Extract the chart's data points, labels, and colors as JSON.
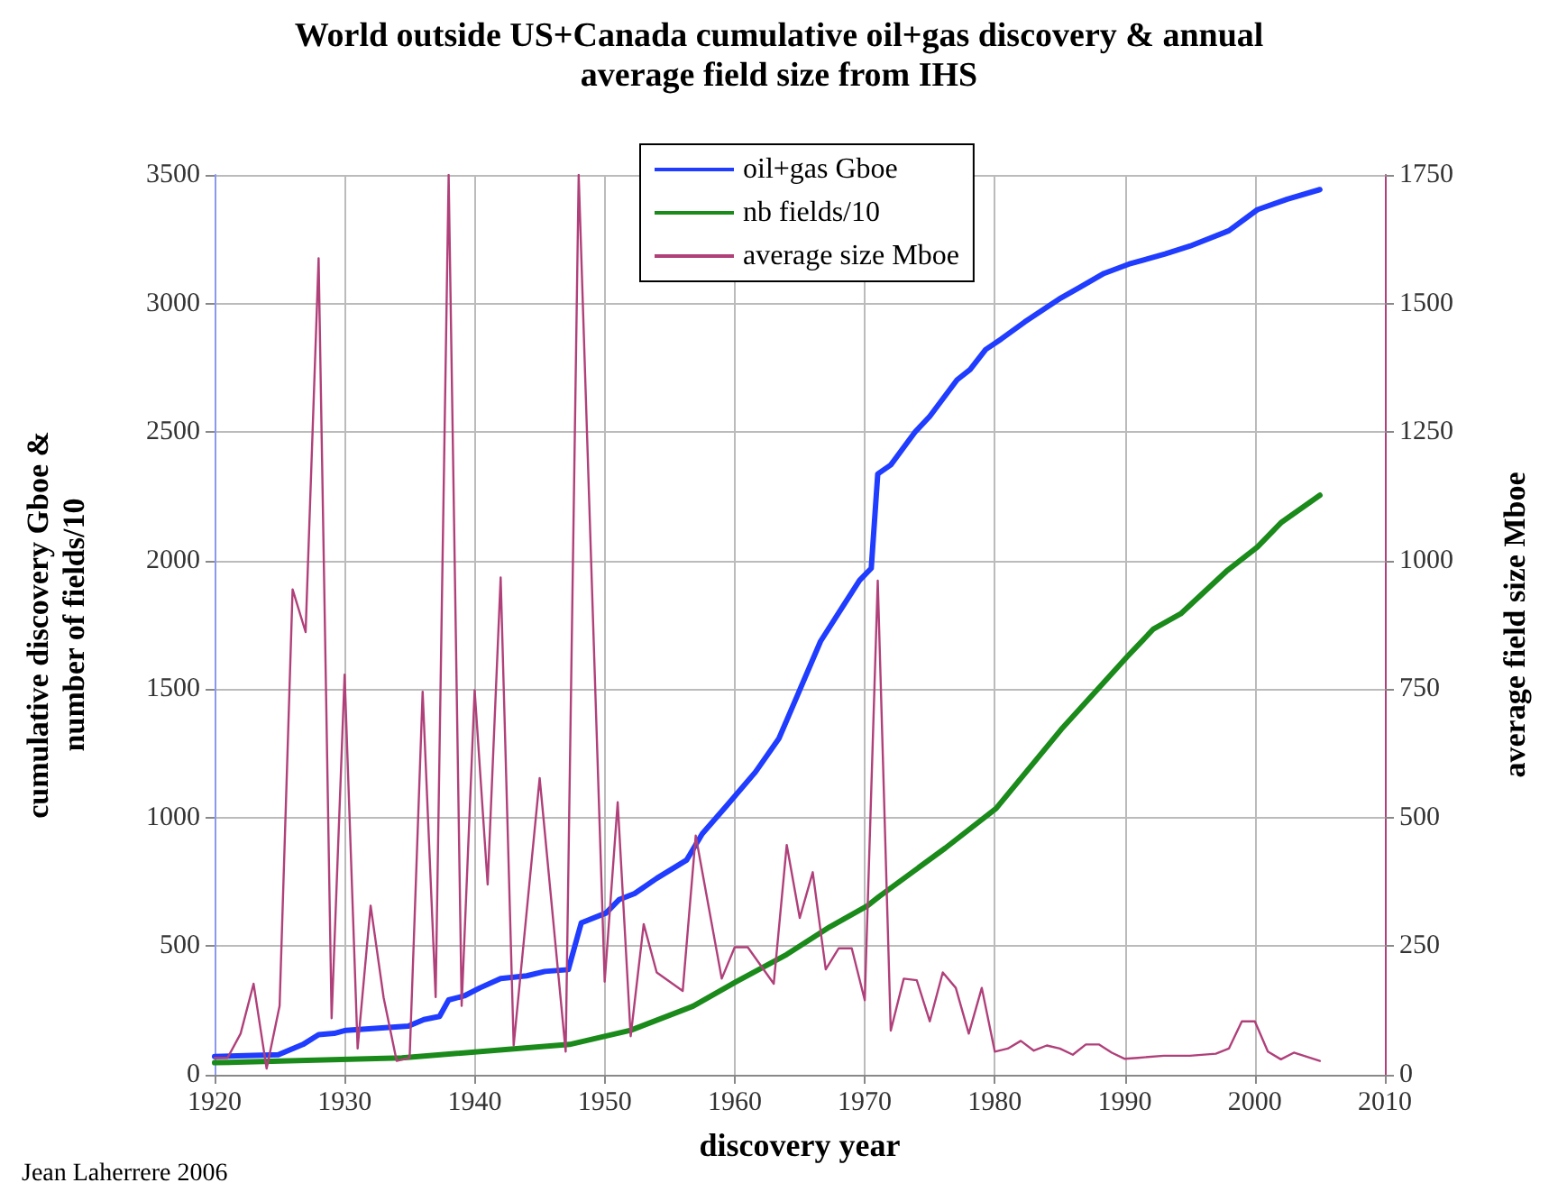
{
  "chart_data": {
    "type": "line",
    "title": "World outside US+Canada cumulative oil+gas discovery & annual average field size from IHS",
    "xlabel": "discovery year",
    "ylabel": "cumulative discovery Gboe & number of fields/10",
    "y2label": "average field size Mboe",
    "annotations": [
      "Jean Laherrere 2006"
    ],
    "series": [
      {
        "name": "oil+gas Gboe",
        "color": "#1f3cff",
        "x": [
          1920,
          1924.9,
          1926.8,
          1928,
          1929.2,
          1930.1,
          1934.9,
          1936.1,
          1937.3,
          1938,
          1939.2,
          1940.4,
          1942,
          1944,
          1945.4,
          1947.2,
          1948.2,
          1950.1,
          1951.1,
          1952.3,
          1954,
          1956.3,
          1957.5,
          1959.4,
          1961.6,
          1963.4,
          1964.9,
          1966.6,
          1968,
          1969.6,
          1970.5,
          1971,
          1972,
          1973.9,
          1975,
          1977.1,
          1978.1,
          1979.3,
          1980.5,
          1982.3,
          1985.1,
          1986.6,
          1988.4,
          1990.3,
          1993.1,
          1995,
          1998,
          2000.2,
          2002.5,
          2005
        ],
        "values": [
          71,
          78,
          118,
          156,
          161,
          173,
          189,
          215,
          227,
          291,
          307,
          338,
          374,
          385,
          402,
          409,
          591,
          629,
          681,
          705,
          764,
          835,
          937,
          1048,
          1178,
          1308,
          1485,
          1686,
          1797,
          1923,
          1970,
          2337,
          2372,
          2502,
          2561,
          2703,
          2743,
          2821,
          2862,
          2928,
          3022,
          3065,
          3117,
          3153,
          3193,
          3223,
          3283,
          3365,
          3406,
          3443
        ]
      },
      {
        "name": "nb fields/10",
        "color": "#1a8a1a",
        "x": [
          1920,
          1934.4,
          1947.3,
          1952,
          1956.8,
          1960.1,
          1964,
          1967.3,
          1970.2,
          1971.1,
          1976.2,
          1980.1,
          1985.1,
          1990.2,
          1992.2,
          1994.3,
          1997.8,
          2000.2,
          2002,
          2005
        ],
        "values": [
          47,
          66,
          118,
          173,
          267,
          362,
          468,
          575,
          657,
          693,
          882,
          1036,
          1343,
          1627,
          1734,
          1793,
          1958,
          2053,
          2147,
          2254
        ]
      },
      {
        "name": "average size Mboe",
        "color": "#b0407a",
        "axis": "y2",
        "x": [
          1920,
          1921,
          1922,
          1923,
          1924,
          1925,
          1926,
          1927,
          1928,
          1929,
          1930,
          1931,
          1932,
          1933,
          1934,
          1935,
          1936,
          1937,
          1938,
          1939,
          1940,
          1941,
          1942,
          1943,
          1945,
          1947,
          1948,
          1950,
          1951,
          1952,
          1953,
          1954,
          1956,
          1957,
          1959,
          1960,
          1961,
          1963,
          1964,
          1965,
          1966,
          1967,
          1968,
          1969,
          1970,
          1971,
          1972,
          1973,
          1974,
          1975,
          1976,
          1977,
          1978,
          1979,
          1980,
          1981,
          1982,
          1983,
          1984,
          1985,
          1986,
          1987,
          1988,
          1989,
          1990,
          1991,
          1993,
          1995,
          1997,
          1998,
          1999,
          2000,
          2001,
          2002,
          2003,
          2005
        ],
        "values": [
          33,
          33,
          80,
          177,
          12,
          134,
          944,
          861,
          1588,
          110,
          778,
          51,
          329,
          150,
          27,
          33,
          745,
          151,
          1750,
          134,
          748,
          370,
          967,
          57,
          577,
          45,
          1750,
          181,
          530,
          75,
          293,
          199,
          163,
          465,
          187,
          248,
          248,
          177,
          447,
          305,
          394,
          205,
          246,
          246,
          145,
          961,
          86,
          187,
          184,
          104,
          199,
          169,
          80,
          169,
          45,
          51,
          66,
          47,
          57,
          51,
          39,
          59,
          59,
          43,
          31,
          33,
          37,
          37,
          41,
          51,
          104,
          104,
          45,
          30,
          43,
          27
        ]
      }
    ],
    "xlim": [
      1920,
      2010
    ],
    "xticks": [
      1920,
      1930,
      1940,
      1950,
      1960,
      1970,
      1980,
      1990,
      2000,
      2010
    ],
    "ylim": [
      0,
      3500
    ],
    "yticks": [
      0,
      500,
      1000,
      1500,
      2000,
      2500,
      3000,
      3500
    ],
    "y2lim": [
      0,
      1750
    ],
    "y2ticks": [
      0,
      250,
      500,
      750,
      1000,
      1250,
      1500,
      1750
    ],
    "grid": true,
    "legend": "top",
    "marker": "none",
    "line_style": "solid"
  }
}
